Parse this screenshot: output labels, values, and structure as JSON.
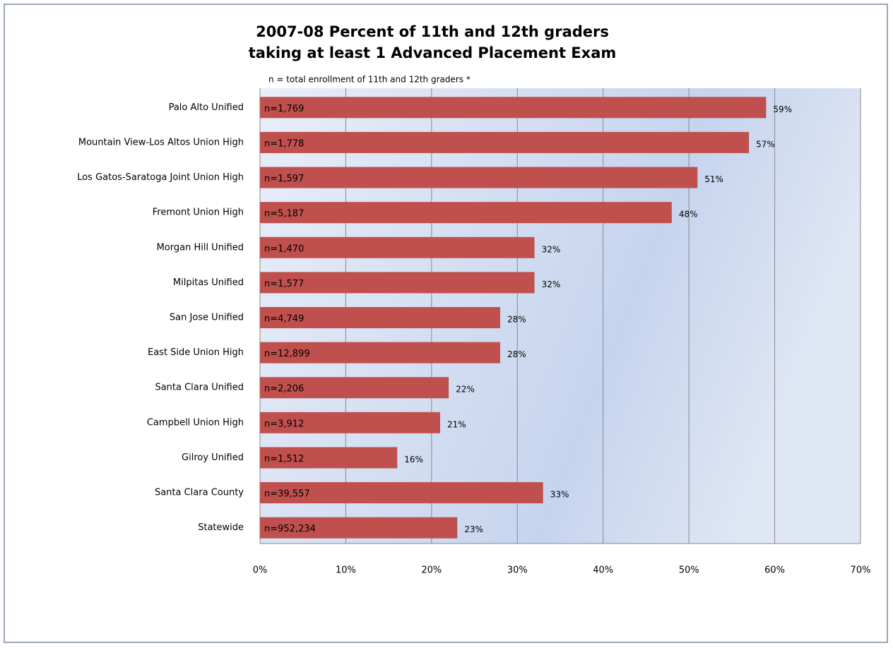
{
  "chart_data": {
    "type": "hbar",
    "title": [
      "2007-08 Percent of 11th and 12th graders",
      "taking at least 1 Advanced Placement Exam"
    ],
    "subtitle": "n = total enrollment of 11th and 12th graders *",
    "categories": [
      "Palo Alto Unified",
      "Mountain View-Los Altos Union High",
      "Los Gatos-Saratoga Joint Union High",
      "Fremont Union High",
      "Morgan Hill Unified",
      "Milpitas Unified",
      "San Jose Unified",
      "East Side Union High",
      "Santa Clara Unified",
      "Campbell Union High",
      "Gilroy Unified",
      "Santa Clara County",
      "Statewide"
    ],
    "values": [
      59,
      57,
      51,
      48,
      32,
      32,
      28,
      28,
      22,
      21,
      16,
      33,
      23
    ],
    "value_labels": [
      "59%",
      "57%",
      "51%",
      "48%",
      "32%",
      "32%",
      "28%",
      "28%",
      "22%",
      "21%",
      "16%",
      "33%",
      "23%"
    ],
    "n_labels": [
      "n=1,769",
      "n=1,778",
      "n=1,597",
      "n=5,187",
      "n=1,470",
      "n=1,577",
      "n=4,749",
      "n=12,899",
      "n=2,206",
      "n=3,912",
      "n=1,512",
      "n=39,557",
      "n=952,234"
    ],
    "color": "#c0504d",
    "xlim": [
      0,
      70
    ],
    "xticks": [
      {
        "value": 0,
        "label": "0%"
      },
      {
        "value": 10,
        "label": "10%"
      },
      {
        "value": 20,
        "label": "20%"
      },
      {
        "value": 30,
        "label": "30%"
      },
      {
        "value": 40,
        "label": "40%"
      },
      {
        "value": 50,
        "label": "50%"
      },
      {
        "value": 60,
        "label": "60%"
      },
      {
        "value": 70,
        "label": "70%"
      }
    ],
    "grid": true
  }
}
